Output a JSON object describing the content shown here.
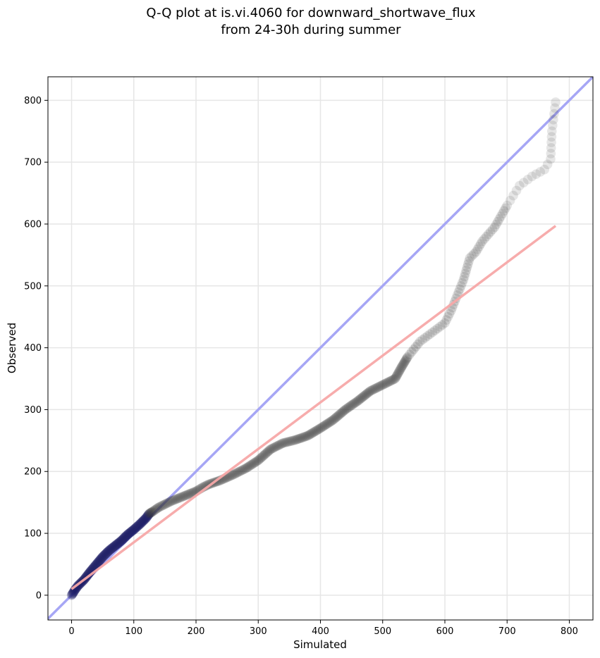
{
  "chart_data": {
    "type": "scatter",
    "title_line1": "Q-Q plot at is.vi.4060 for downward_shortwave_flux",
    "title_line2": "from 24-30h during summer",
    "xlabel": "Simulated",
    "ylabel": "Observed",
    "xlim": [
      -38,
      838
    ],
    "ylim": [
      -40,
      838
    ],
    "xticks": [
      0,
      100,
      200,
      300,
      400,
      500,
      600,
      700,
      800
    ],
    "yticks": [
      0,
      100,
      200,
      300,
      400,
      500,
      600,
      700,
      800
    ],
    "grid": true,
    "colors": {
      "identity_line": "#a6a6f5",
      "fit_line": "#f7a8a8",
      "points": "#333333",
      "points_low": "#1a1a66"
    },
    "identity_line": {
      "x": [
        -38,
        838
      ],
      "y": [
        -38,
        838
      ]
    },
    "fit_line": {
      "x": [
        0,
        778
      ],
      "y": [
        10,
        597
      ]
    },
    "quantile_curve": {
      "x": [
        0,
        2,
        5,
        10,
        20,
        30,
        40,
        50,
        60,
        70,
        80,
        90,
        100,
        110,
        120,
        125,
        130,
        140,
        150,
        160,
        170,
        180,
        190,
        200,
        210,
        220,
        240,
        260,
        280,
        300,
        320,
        340,
        360,
        380,
        400,
        420,
        440,
        460,
        480,
        500,
        520,
        530,
        540,
        560,
        580,
        600,
        610,
        620,
        630,
        640,
        650,
        660,
        680,
        700,
        720,
        740,
        760,
        770,
        772,
        778
      ],
      "y": [
        0,
        3,
        8,
        15,
        25,
        38,
        50,
        62,
        72,
        80,
        88,
        98,
        106,
        115,
        125,
        132,
        135,
        142,
        147,
        152,
        156,
        160,
        164,
        168,
        174,
        179,
        186,
        195,
        205,
        218,
        236,
        246,
        251,
        258,
        270,
        283,
        300,
        314,
        330,
        340,
        350,
        368,
        385,
        410,
        425,
        440,
        460,
        485,
        510,
        545,
        555,
        572,
        595,
        630,
        662,
        677,
        688,
        705,
        750,
        797
      ]
    }
  }
}
